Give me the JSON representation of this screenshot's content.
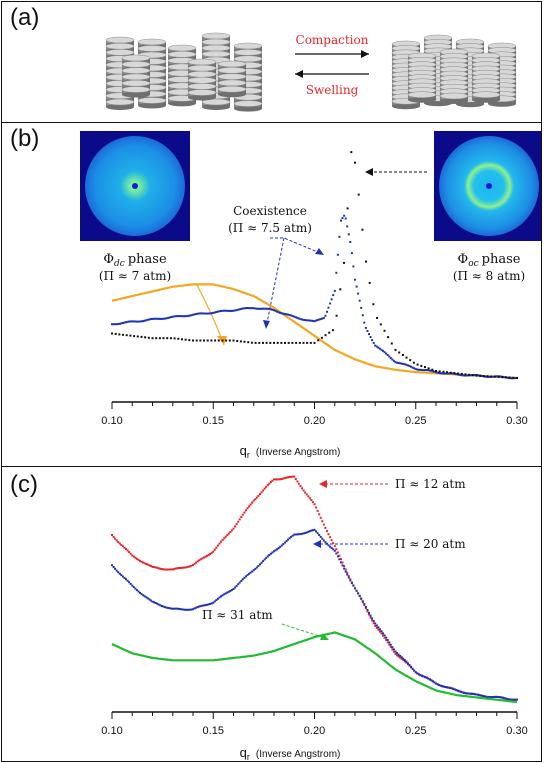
{
  "panel_a": {
    "label": "(a)",
    "compaction": "Compaction",
    "swelling": "Swelling",
    "arrow_color": "#e8262a"
  },
  "panel_b": {
    "label": "(b)",
    "dc_phase_symbol": "Φ",
    "dc_phase_sub": "dc",
    "dc_phase_word": "phase",
    "dc_pressure": "(Π ≈ 7 atm)",
    "oc_phase_symbol": "Φ",
    "oc_phase_sub": "oc",
    "oc_phase_word": "phase",
    "oc_pressure": "(Π ≈ 8 atm)",
    "coexistence_title": "Coexistence",
    "coexistence_pressure": "(Π ≈ 7.5 atm)",
    "xlabel_main": "q",
    "xlabel_sub": "r",
    "xlabel_unit": "(Inverse Angstrom)"
  },
  "panel_c": {
    "label": "(c)",
    "label_12": "Π ≈ 12 atm",
    "label_20": "Π ≈ 20 atm",
    "label_31": "Π ≈ 31 atm",
    "xlabel_main": "q",
    "xlabel_sub": "r",
    "xlabel_unit": "(Inverse Angstrom)"
  },
  "chart_data": [
    {
      "type": "line",
      "panel": "b",
      "xlabel": "qr (Inverse Angstrom)",
      "xlim": [
        0.1,
        0.3
      ],
      "xticks": [
        "0.10",
        "0.15",
        "0.20",
        "0.25",
        "0.30"
      ],
      "series": [
        {
          "color": "#f5a623",
          "x": [
            0.1,
            0.11,
            0.12,
            0.13,
            0.14,
            0.15,
            0.16,
            0.17,
            0.18,
            0.19,
            0.2,
            0.21,
            0.22,
            0.23,
            0.24,
            0.25,
            0.26,
            0.27,
            0.28,
            0.29,
            0.3
          ],
          "y": [
            0.36,
            0.38,
            0.4,
            0.42,
            0.43,
            0.43,
            0.41,
            0.38,
            0.33,
            0.27,
            0.21,
            0.15,
            0.11,
            0.08,
            0.065,
            0.055,
            0.05,
            0.045,
            0.04,
            0.035,
            0.03
          ]
        },
        {
          "color": "#2133b5",
          "x": [
            0.1,
            0.11,
            0.12,
            0.13,
            0.14,
            0.15,
            0.16,
            0.17,
            0.18,
            0.19,
            0.2,
            0.205,
            0.21,
            0.213,
            0.215,
            0.218,
            0.22,
            0.225,
            0.23,
            0.24,
            0.25,
            0.26,
            0.27,
            0.28,
            0.29,
            0.3
          ],
          "y": [
            0.26,
            0.27,
            0.28,
            0.29,
            0.3,
            0.31,
            0.32,
            0.33,
            0.32,
            0.29,
            0.27,
            0.29,
            0.4,
            0.7,
            0.73,
            0.6,
            0.45,
            0.25,
            0.17,
            0.1,
            0.07,
            0.055,
            0.045,
            0.04,
            0.035,
            0.03
          ]
        },
        {
          "color": "#111111",
          "x": [
            0.1,
            0.11,
            0.12,
            0.13,
            0.14,
            0.15,
            0.16,
            0.17,
            0.18,
            0.19,
            0.2,
            0.21,
            0.215,
            0.218,
            0.22,
            0.222,
            0.225,
            0.23,
            0.24,
            0.25,
            0.26,
            0.27,
            0.28,
            0.29,
            0.3
          ],
          "y": [
            0.22,
            0.21,
            0.2,
            0.2,
            0.19,
            0.19,
            0.19,
            0.18,
            0.18,
            0.18,
            0.18,
            0.24,
            0.55,
            1.0,
            0.95,
            0.8,
            0.55,
            0.3,
            0.15,
            0.09,
            0.06,
            0.05,
            0.04,
            0.035,
            0.03
          ]
        }
      ]
    },
    {
      "type": "line",
      "panel": "c",
      "xlabel": "qr (Inverse Angstrom)",
      "xlim": [
        0.1,
        0.3
      ],
      "xticks": [
        "0.10",
        "0.15",
        "0.20",
        "0.25",
        "0.30"
      ],
      "series": [
        {
          "name": "Π ≈ 12 atm",
          "color": "#e8262a",
          "x": [
            0.1,
            0.11,
            0.12,
            0.13,
            0.14,
            0.15,
            0.16,
            0.17,
            0.18,
            0.19,
            0.2,
            0.21,
            0.22,
            0.23,
            0.24,
            0.25,
            0.26,
            0.27,
            0.28,
            0.29,
            0.3
          ],
          "y": [
            0.75,
            0.66,
            0.61,
            0.6,
            0.62,
            0.68,
            0.78,
            0.9,
            0.99,
            1.0,
            0.88,
            0.7,
            0.52,
            0.36,
            0.24,
            0.16,
            0.11,
            0.08,
            0.06,
            0.05,
            0.04
          ]
        },
        {
          "name": "Π ≈ 20 atm",
          "color": "#2133b5",
          "x": [
            0.1,
            0.11,
            0.12,
            0.13,
            0.14,
            0.15,
            0.16,
            0.17,
            0.18,
            0.19,
            0.2,
            0.21,
            0.22,
            0.23,
            0.24,
            0.25,
            0.26,
            0.27,
            0.28,
            0.29,
            0.3
          ],
          "y": [
            0.62,
            0.53,
            0.46,
            0.43,
            0.43,
            0.46,
            0.52,
            0.6,
            0.68,
            0.75,
            0.77,
            0.68,
            0.52,
            0.37,
            0.25,
            0.16,
            0.11,
            0.08,
            0.06,
            0.05,
            0.04
          ]
        },
        {
          "name": "Π ≈ 31 atm",
          "color": "#22bb33",
          "x": [
            0.1,
            0.11,
            0.12,
            0.13,
            0.14,
            0.15,
            0.16,
            0.17,
            0.18,
            0.19,
            0.2,
            0.21,
            0.22,
            0.23,
            0.24,
            0.25,
            0.26,
            0.27,
            0.28,
            0.29,
            0.3
          ],
          "y": [
            0.28,
            0.24,
            0.22,
            0.21,
            0.21,
            0.21,
            0.22,
            0.23,
            0.25,
            0.28,
            0.31,
            0.33,
            0.3,
            0.24,
            0.17,
            0.12,
            0.08,
            0.06,
            0.05,
            0.04,
            0.03
          ]
        }
      ]
    }
  ]
}
